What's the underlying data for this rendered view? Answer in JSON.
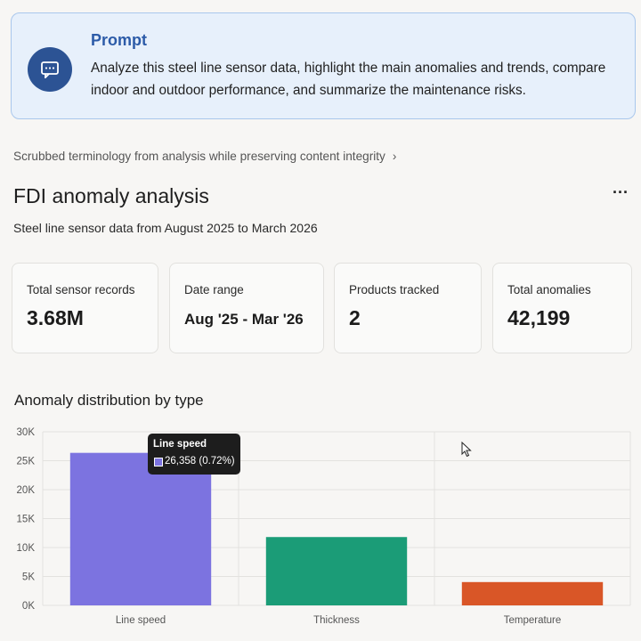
{
  "prompt": {
    "title": "Prompt",
    "text": "Analyze this steel line sensor data, highlight the main anomalies and trends, compare indoor and outdoor performance, and summarize the maintenance risks."
  },
  "scrub_note": "Scrubbed terminology from analysis while preserving content integrity",
  "page": {
    "title": "FDI anomaly analysis",
    "subtitle": "Steel line sensor data from August 2025 to March 2026",
    "more_label": "···"
  },
  "stats": [
    {
      "label": "Total sensor records",
      "value": "3.68M"
    },
    {
      "label": "Date range",
      "value": "Aug '25 - Mar '26"
    },
    {
      "label": "Products tracked",
      "value": "2"
    },
    {
      "label": "Total anomalies",
      "value": "42,199"
    }
  ],
  "chart_section_title": "Anomaly distribution by type",
  "chart_data": {
    "type": "bar",
    "categories": [
      "Line speed",
      "Thickness",
      "Temperature"
    ],
    "values": [
      26358,
      11811,
      4030
    ],
    "colors": [
      "#7c73e0",
      "#1b9c77",
      "#d95627"
    ],
    "ylim": [
      0,
      30000
    ],
    "yticks": [
      "0K",
      "5K",
      "10K",
      "15K",
      "20K",
      "25K",
      "30K"
    ],
    "grid": true
  },
  "tooltip": {
    "title": "Line speed",
    "value": "26,358 (0.72%)"
  }
}
